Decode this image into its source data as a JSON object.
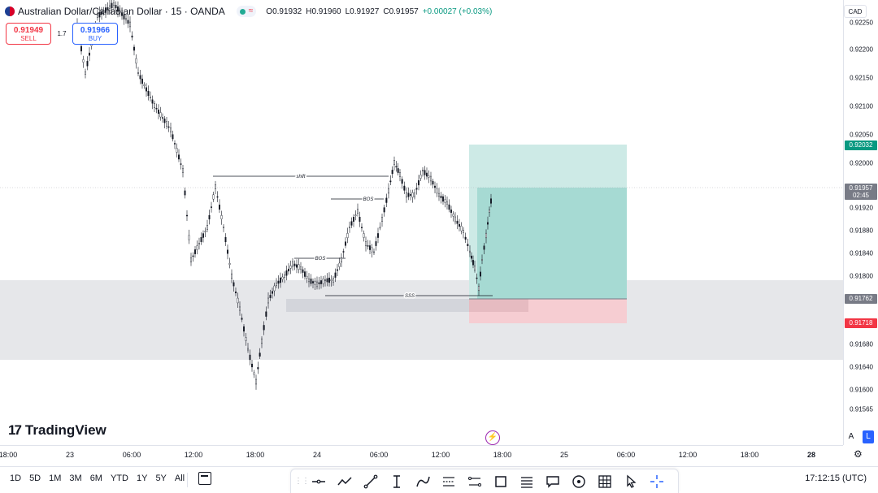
{
  "header": {
    "symbol_title": "Australian Dollar/Canadian Dollar · 15 · OANDA",
    "ohlc": {
      "o_label": "O",
      "o": "0.91932",
      "h_label": "H",
      "h": "0.91960",
      "l_label": "L",
      "l": "0.91927",
      "c_label": "C",
      "c": "0.91957",
      "change": "+0.00027 (+0.03%)"
    },
    "status_wave": "≈"
  },
  "trade": {
    "sell_price": "0.91949",
    "sell_label": "SELL",
    "buy_price": "0.91966",
    "buy_label": "BUY",
    "spread": "1.7"
  },
  "currency_button": "CAD",
  "price_axis": {
    "ticks": [
      "0.92250",
      "0.92200",
      "0.92150",
      "0.92100",
      "0.92050",
      "0.92000",
      "0.91920",
      "0.91880",
      "0.91840",
      "0.91800",
      "0.91680",
      "0.91640",
      "0.91600",
      "0.91565"
    ],
    "labels": {
      "target": "0.92032",
      "current": "0.91957",
      "countdown": "02:45",
      "entry": "0.91762",
      "stop": "0.91718"
    }
  },
  "time_axis": {
    "ticks": [
      {
        "label": "18:00",
        "bold": false
      },
      {
        "label": "23",
        "bold": false
      },
      {
        "label": "06:00",
        "bold": false
      },
      {
        "label": "12:00",
        "bold": false
      },
      {
        "label": "18:00",
        "bold": false
      },
      {
        "label": "24",
        "bold": false
      },
      {
        "label": "06:00",
        "bold": false
      },
      {
        "label": "12:00",
        "bold": false
      },
      {
        "label": "18:00",
        "bold": false
      },
      {
        "label": "25",
        "bold": false
      },
      {
        "label": "06:00",
        "bold": false
      },
      {
        "label": "12:00",
        "bold": false
      },
      {
        "label": "18:00",
        "bold": false
      },
      {
        "label": "28",
        "bold": true
      }
    ]
  },
  "annotations": {
    "shift": "shift",
    "bos1": "BOS",
    "bos2": "BOS",
    "sss": "SSS"
  },
  "branding": {
    "logo_mark": "17",
    "logo_text": "TradingView"
  },
  "scale_buttons": {
    "auto": "A",
    "log": "L"
  },
  "bottom": {
    "ranges": [
      "1D",
      "5D",
      "1M",
      "3M",
      "6M",
      "YTD",
      "1Y",
      "5Y",
      "All"
    ],
    "clock": "17:12:15 (UTC)"
  },
  "colors": {
    "candle": "#131722",
    "profit_zone": "#b2dfdb",
    "loss_zone": "#f7c6cb",
    "demand_zone": "#e0e3eb",
    "target_label": "#089981",
    "current_label": "#787b86",
    "stop_label": "#f23645",
    "entry_label": "#787b86"
  },
  "icons": [
    "grip-icon",
    "horizontal-line-icon",
    "trend-angle-icon",
    "trend-line-icon",
    "text-cursor-icon",
    "curve-icon",
    "path-icon",
    "ruler-range-icon",
    "rectangle-icon",
    "fib-lines-icon",
    "callout-icon",
    "circle-target-icon",
    "grid-icon",
    "pointer-icon",
    "crosshair-icon"
  ]
}
